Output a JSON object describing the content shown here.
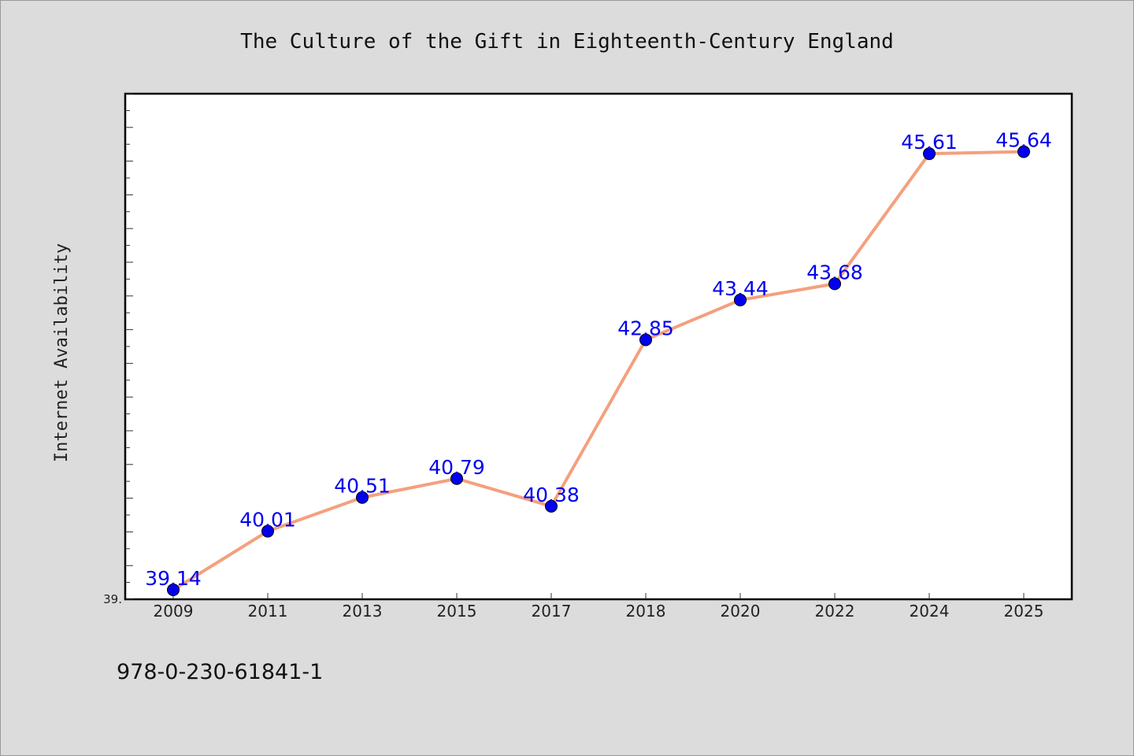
{
  "chart_data": {
    "type": "line",
    "title": "The Culture of the Gift in Eighteenth-Century England",
    "xlabel": "",
    "ylabel": "Internet Availability",
    "categories": [
      "2009",
      "2011",
      "2013",
      "2015",
      "2017",
      "2018",
      "2020",
      "2022",
      "2024",
      "2025"
    ],
    "series": [
      {
        "values": [
          39.14,
          40.01,
          40.51,
          40.79,
          40.38,
          42.85,
          43.44,
          43.68,
          45.61,
          45.64
        ],
        "labels": [
          "39.14",
          "40.01",
          "40.51",
          "40.79",
          "40.38",
          "42.85",
          "43.44",
          "43.68",
          "45.61",
          "45.64"
        ]
      }
    ],
    "ylim": [
      39.0,
      46.5
    ],
    "y_tick_labels": [
      "39."
    ],
    "grid": false,
    "legend": "none",
    "colors": {
      "line": "#f4a07e",
      "marker": "#0000ee",
      "label": "#0000ee",
      "background": "#dcdcdc",
      "plot_background": "#ffffff"
    }
  },
  "footer": {
    "isbn": "978-0-230-61841-1"
  }
}
